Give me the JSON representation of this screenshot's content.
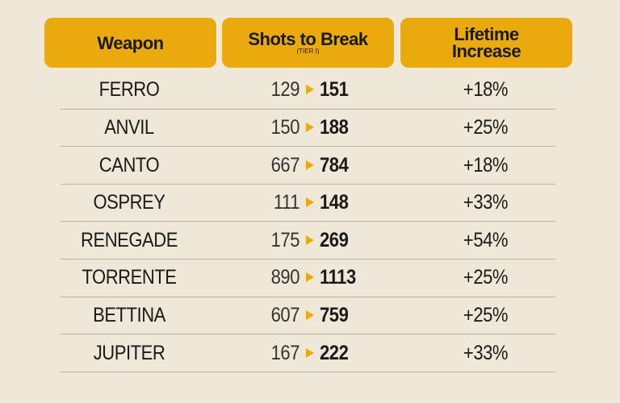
{
  "table": {
    "headers": [
      "Weapon",
      "Shots to Break",
      "Lifetime Increase"
    ],
    "subheader": "(TIER I)",
    "rows": [
      [
        "FERRO",
        129,
        151,
        "+18%"
      ],
      [
        "ANVIL",
        150,
        188,
        "+25%"
      ],
      [
        "CANTO",
        667,
        784,
        "+18%"
      ],
      [
        "OSPREY",
        111,
        148,
        "+33%"
      ],
      [
        "RENEGADE",
        175,
        269,
        "+54%"
      ],
      [
        "TORRENTE",
        890,
        1113,
        "+25%"
      ],
      [
        "BETTINA",
        607,
        759,
        "+25%"
      ],
      [
        "JUPITER",
        167,
        222,
        "+33%"
      ]
    ]
  }
}
